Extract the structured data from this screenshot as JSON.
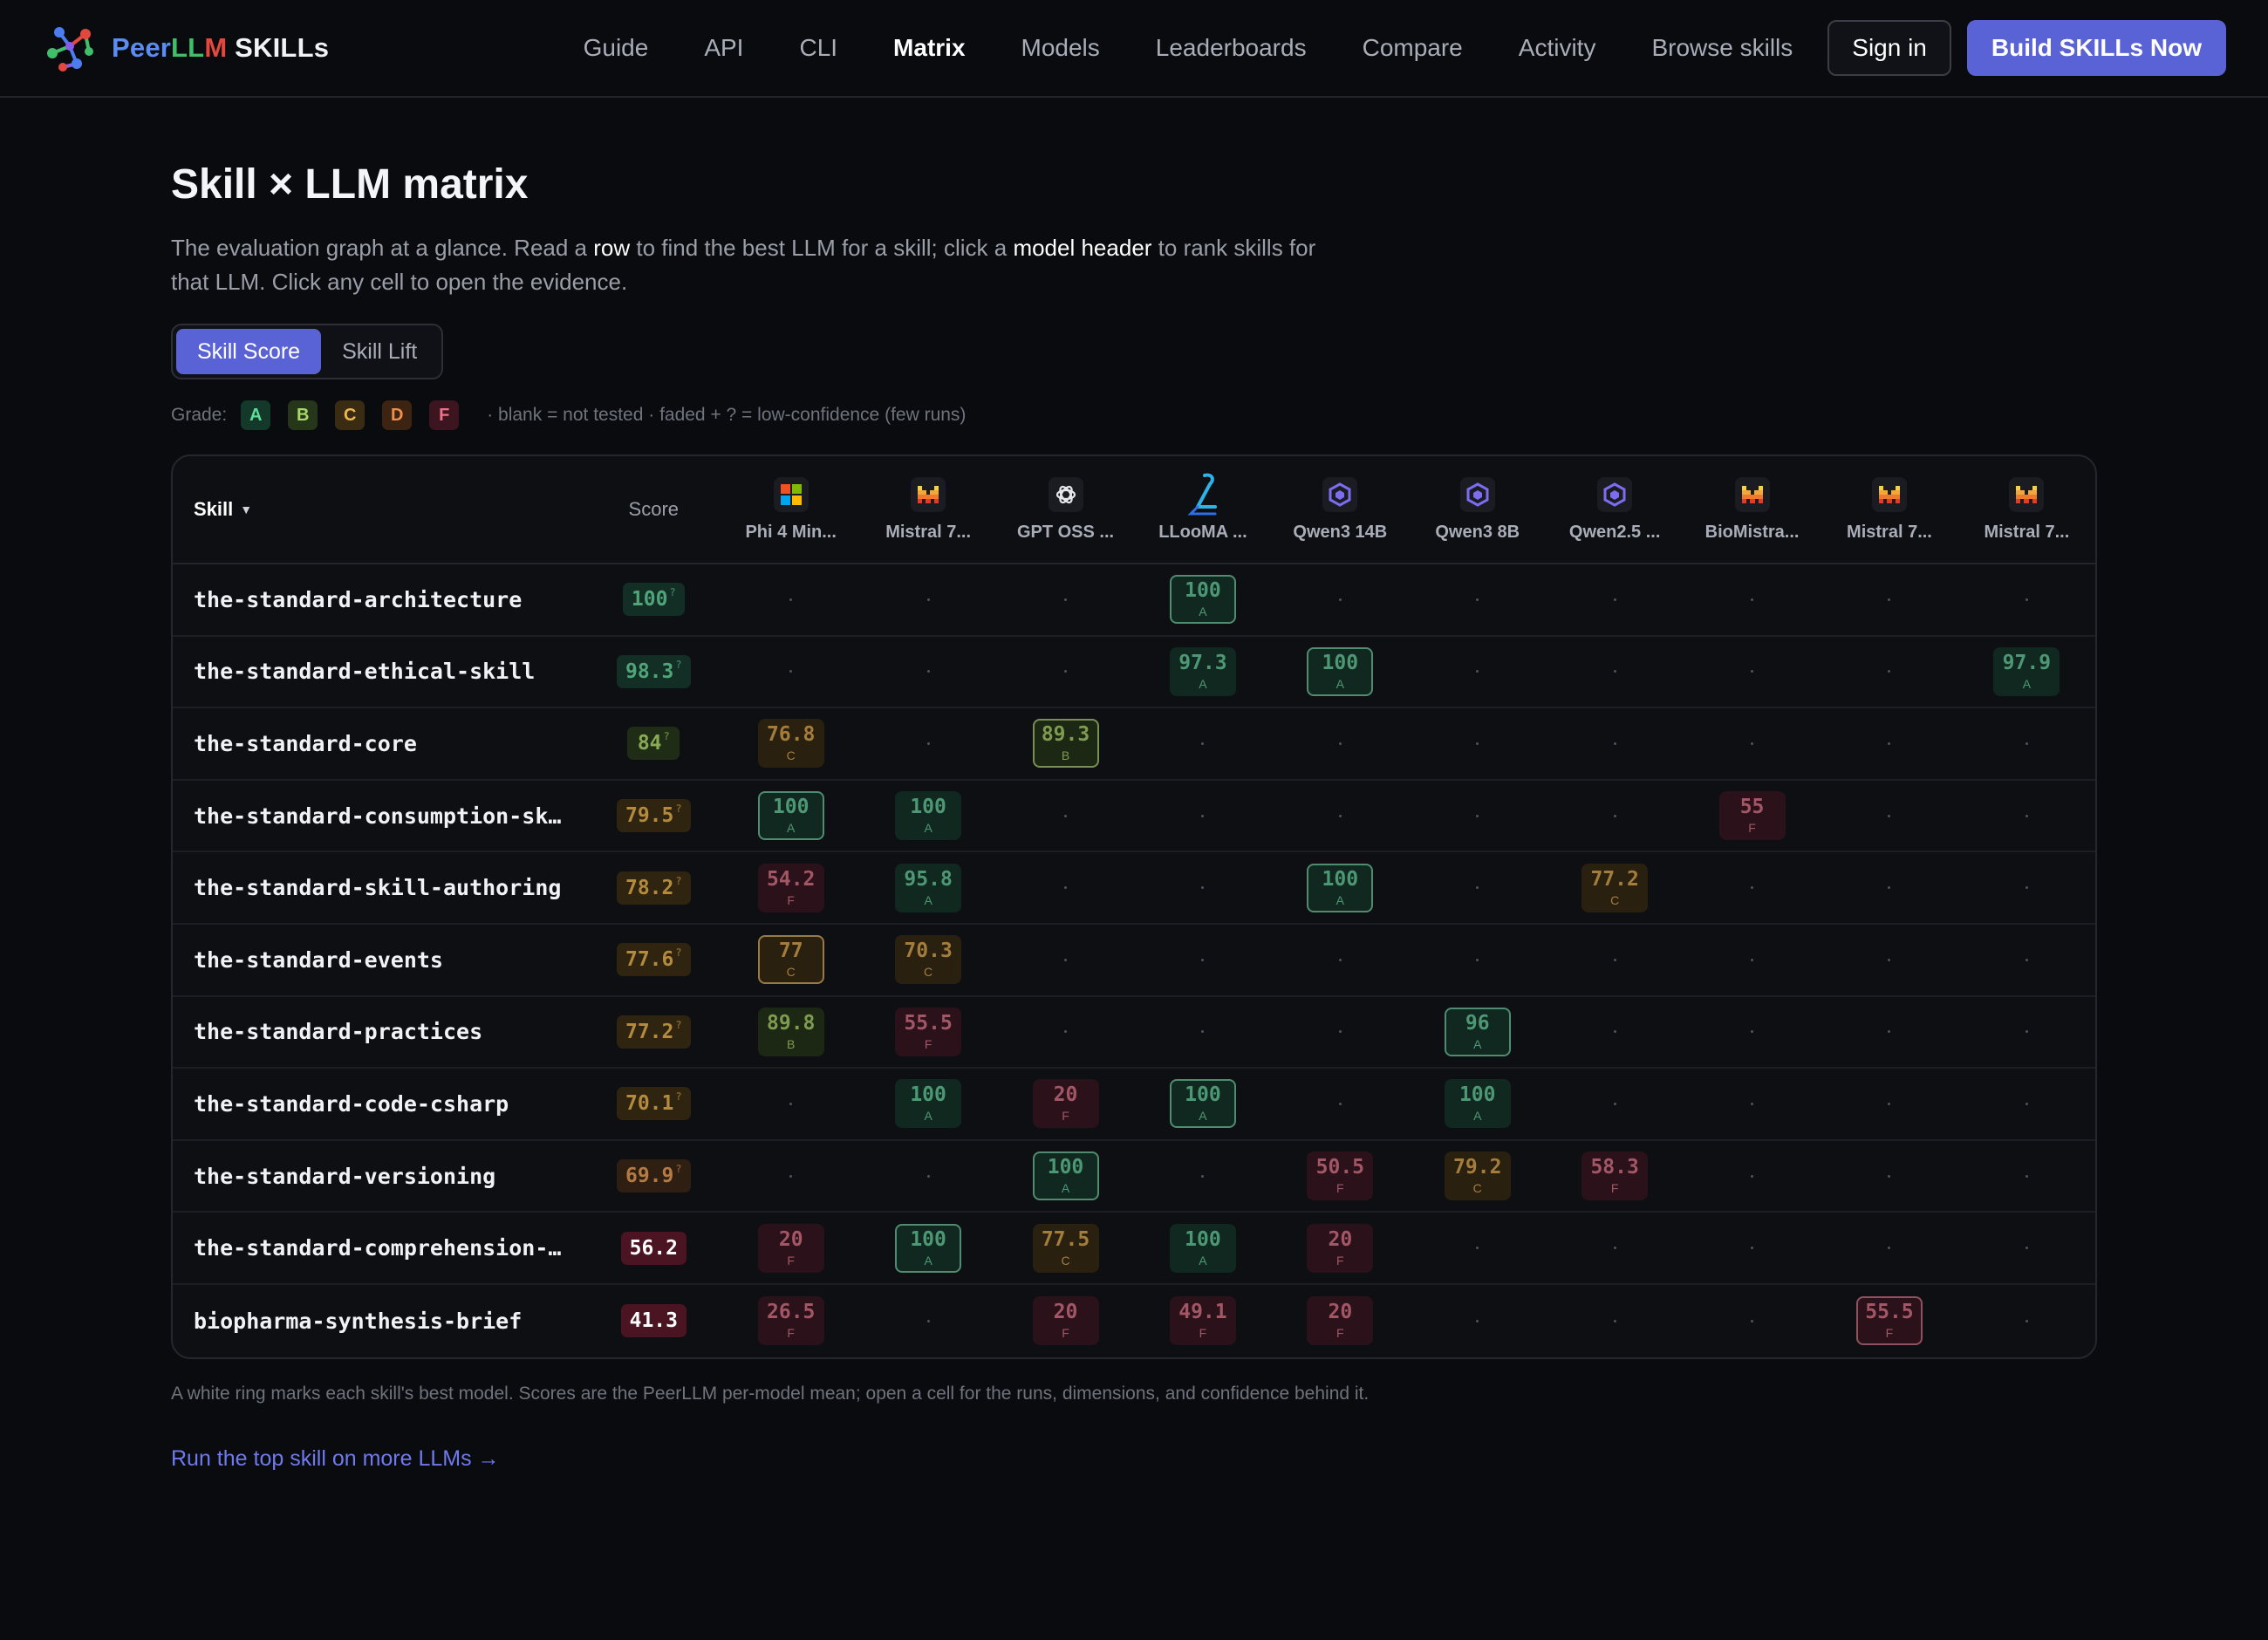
{
  "brand": {
    "part1": "Peer",
    "part2": "LL",
    "part3": "M",
    "part4": " SKILLs"
  },
  "nav": {
    "items": [
      "Guide",
      "API",
      "CLI",
      "Matrix",
      "Models",
      "Leaderboards",
      "Compare",
      "Activity",
      "Browse skills"
    ],
    "active": "Matrix",
    "signin": "Sign in",
    "build": "Build SKILLs Now"
  },
  "page": {
    "title": "Skill × LLM matrix",
    "desc_1": "The evaluation graph at a glance. Read a ",
    "desc_row": "row",
    "desc_2": " to find the best LLM for a skill; click a ",
    "desc_header": "model header",
    "desc_3": " to rank skills for that LLM. Click any cell to open the evidence.",
    "toggle": [
      "Skill Score",
      "Skill Lift"
    ],
    "grade_label": "Grade:",
    "grades": [
      "A",
      "B",
      "C",
      "D",
      "F"
    ],
    "grade_note": "· blank = not tested · faded + ? = low-confidence (few runs)",
    "footnote": "A white ring marks each skill's best model. Scores are the PeerLLM per-model mean; open a cell for the runs, dimensions, and confidence behind it.",
    "cta": "Run the top skill on more LLMs →"
  },
  "table": {
    "skill_header": "Skill",
    "score_header": "Score",
    "models": [
      {
        "label": "Phi 4 Min...",
        "icon": "microsoft-icon"
      },
      {
        "label": "Mistral 7...",
        "icon": "mistral-icon"
      },
      {
        "label": "GPT OSS ...",
        "icon": "openai-icon"
      },
      {
        "label": "LLooMA ...",
        "icon": "llooma-icon"
      },
      {
        "label": "Qwen3 14B",
        "icon": "qwen-icon"
      },
      {
        "label": "Qwen3 8B",
        "icon": "qwen-icon"
      },
      {
        "label": "Qwen2.5 ...",
        "icon": "qwen-icon"
      },
      {
        "label": "BioMistra...",
        "icon": "mistral-icon"
      },
      {
        "label": "Mistral 7...",
        "icon": "mistral-icon"
      },
      {
        "label": "Mistral 7...",
        "icon": "mistral-icon"
      }
    ],
    "rows": [
      {
        "skill": "the-standard-architecture",
        "score": "100",
        "grade": "A",
        "low": true,
        "cells": [
          null,
          null,
          null,
          {
            "v": "100",
            "g": "A",
            "best": true
          },
          null,
          null,
          null,
          null,
          null,
          null
        ]
      },
      {
        "skill": "the-standard-ethical-skill",
        "score": "98.3",
        "grade": "A",
        "low": true,
        "cells": [
          null,
          null,
          null,
          {
            "v": "97.3",
            "g": "A"
          },
          {
            "v": "100",
            "g": "A",
            "best": true
          },
          null,
          null,
          null,
          null,
          {
            "v": "97.9",
            "g": "A"
          }
        ]
      },
      {
        "skill": "the-standard-core",
        "score": "84",
        "grade": "B",
        "low": true,
        "cells": [
          {
            "v": "76.8",
            "g": "C"
          },
          null,
          {
            "v": "89.3",
            "g": "B",
            "best": true
          },
          null,
          null,
          null,
          null,
          null,
          null,
          null
        ]
      },
      {
        "skill": "the-standard-consumption-sk…",
        "score": "79.5",
        "grade": "C",
        "low": true,
        "cells": [
          {
            "v": "100",
            "g": "A",
            "best": true
          },
          {
            "v": "100",
            "g": "A"
          },
          null,
          null,
          null,
          null,
          null,
          {
            "v": "55",
            "g": "F"
          },
          null,
          null
        ]
      },
      {
        "skill": "the-standard-skill-authoring",
        "score": "78.2",
        "grade": "C",
        "low": true,
        "cells": [
          {
            "v": "54.2",
            "g": "F"
          },
          {
            "v": "95.8",
            "g": "A"
          },
          null,
          null,
          {
            "v": "100",
            "g": "A",
            "best": true
          },
          null,
          {
            "v": "77.2",
            "g": "C"
          },
          null,
          null,
          null
        ]
      },
      {
        "skill": "the-standard-events",
        "score": "77.6",
        "grade": "C",
        "low": true,
        "cells": [
          {
            "v": "77",
            "g": "C",
            "best": true
          },
          {
            "v": "70.3",
            "g": "C"
          },
          null,
          null,
          null,
          null,
          null,
          null,
          null,
          null
        ]
      },
      {
        "skill": "the-standard-practices",
        "score": "77.2",
        "grade": "C",
        "low": true,
        "cells": [
          {
            "v": "89.8",
            "g": "B"
          },
          {
            "v": "55.5",
            "g": "F"
          },
          null,
          null,
          null,
          {
            "v": "96",
            "g": "A",
            "best": true
          },
          null,
          null,
          null,
          null
        ]
      },
      {
        "skill": "the-standard-code-csharp",
        "score": "70.1",
        "grade": "C",
        "low": true,
        "cells": [
          null,
          {
            "v": "100",
            "g": "A"
          },
          {
            "v": "20",
            "g": "F"
          },
          {
            "v": "100",
            "g": "A",
            "best": true
          },
          null,
          {
            "v": "100",
            "g": "A"
          },
          null,
          null,
          null,
          null
        ]
      },
      {
        "skill": "the-standard-versioning",
        "score": "69.9",
        "grade": "D",
        "low": true,
        "cells": [
          null,
          null,
          {
            "v": "100",
            "g": "A",
            "best": true
          },
          null,
          {
            "v": "50.5",
            "g": "F"
          },
          {
            "v": "79.2",
            "g": "C"
          },
          {
            "v": "58.3",
            "g": "F"
          },
          null,
          null,
          null
        ]
      },
      {
        "skill": "the-standard-comprehension-…",
        "score": "56.2",
        "grade": "F",
        "low": false,
        "cells": [
          {
            "v": "20",
            "g": "F"
          },
          {
            "v": "100",
            "g": "A",
            "best": true
          },
          {
            "v": "77.5",
            "g": "C"
          },
          {
            "v": "100",
            "g": "A"
          },
          {
            "v": "20",
            "g": "F"
          },
          null,
          null,
          null,
          null,
          null
        ]
      },
      {
        "skill": "biopharma-synthesis-brief",
        "score": "41.3",
        "grade": "F",
        "low": false,
        "cells": [
          {
            "v": "26.5",
            "g": "F"
          },
          null,
          {
            "v": "20",
            "g": "F"
          },
          {
            "v": "49.1",
            "g": "F"
          },
          {
            "v": "20",
            "g": "F"
          },
          null,
          null,
          null,
          {
            "v": "55.5",
            "g": "F",
            "best": true
          },
          null
        ]
      }
    ]
  }
}
